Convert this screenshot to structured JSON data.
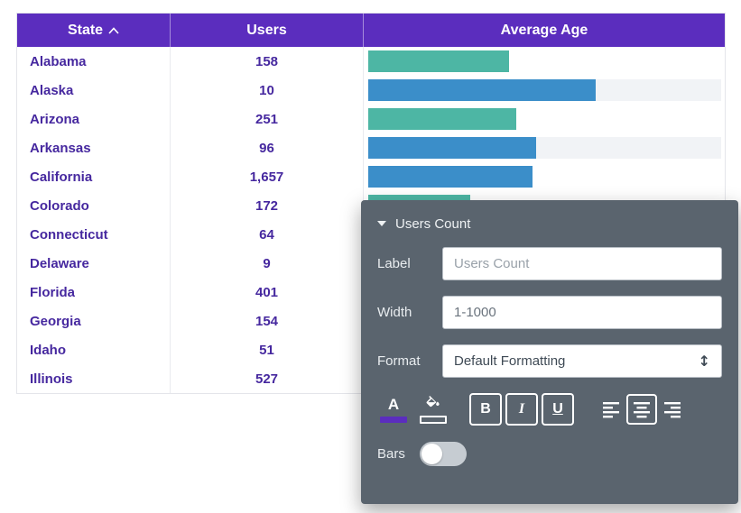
{
  "table": {
    "header": {
      "state": "State",
      "users": "Users",
      "average_age": "Average Age"
    },
    "rows": [
      {
        "state": "Alabama",
        "users": "158",
        "bar": {
          "fraction": 0.4,
          "color": "teal",
          "track": false
        }
      },
      {
        "state": "Alaska",
        "users": "10",
        "bar": {
          "fraction": 0.645,
          "color": "blue",
          "track": true
        }
      },
      {
        "state": "Arizona",
        "users": "251",
        "bar": {
          "fraction": 0.42,
          "color": "teal",
          "track": false
        }
      },
      {
        "state": "Arkansas",
        "users": "96",
        "bar": {
          "fraction": 0.475,
          "color": "blue",
          "track": true
        }
      },
      {
        "state": "California",
        "users": "1,657",
        "bar": {
          "fraction": 0.465,
          "color": "blue",
          "track": false
        }
      },
      {
        "state": "Colorado",
        "users": "172",
        "bar": {
          "fraction": 0.29,
          "color": "teal",
          "track": false
        }
      },
      {
        "state": "Connecticut",
        "users": "64",
        "bar": null
      },
      {
        "state": "Delaware",
        "users": "9",
        "bar": null
      },
      {
        "state": "Florida",
        "users": "401",
        "bar": null
      },
      {
        "state": "Georgia",
        "users": "154",
        "bar": null
      },
      {
        "state": "Idaho",
        "users": "51",
        "bar": null
      },
      {
        "state": "Illinois",
        "users": "527",
        "bar": null
      }
    ]
  },
  "panel": {
    "title": "Users Count",
    "fields": {
      "label": {
        "label": "Label",
        "placeholder": "Users Count"
      },
      "width": {
        "label": "Width",
        "value": "1-1000"
      },
      "format": {
        "label": "Format",
        "value": "Default Formatting"
      }
    },
    "toolbar": {
      "text_color_label": "A",
      "bold_label": "B",
      "italic_label": "I",
      "underline_label": "U"
    },
    "bars_toggle": {
      "label": "Bars",
      "state": "off"
    }
  },
  "icons": {
    "select_updown": "↕"
  },
  "colors": {
    "header_purple": "#5b2dbe",
    "row_text_purple": "#46289f",
    "teal": "#4db6a4",
    "blue": "#3b8ec9",
    "bar_track": "#f1f3f6",
    "panel_bg": "#5a646e",
    "swatch_purple": "#5b2dbe"
  }
}
